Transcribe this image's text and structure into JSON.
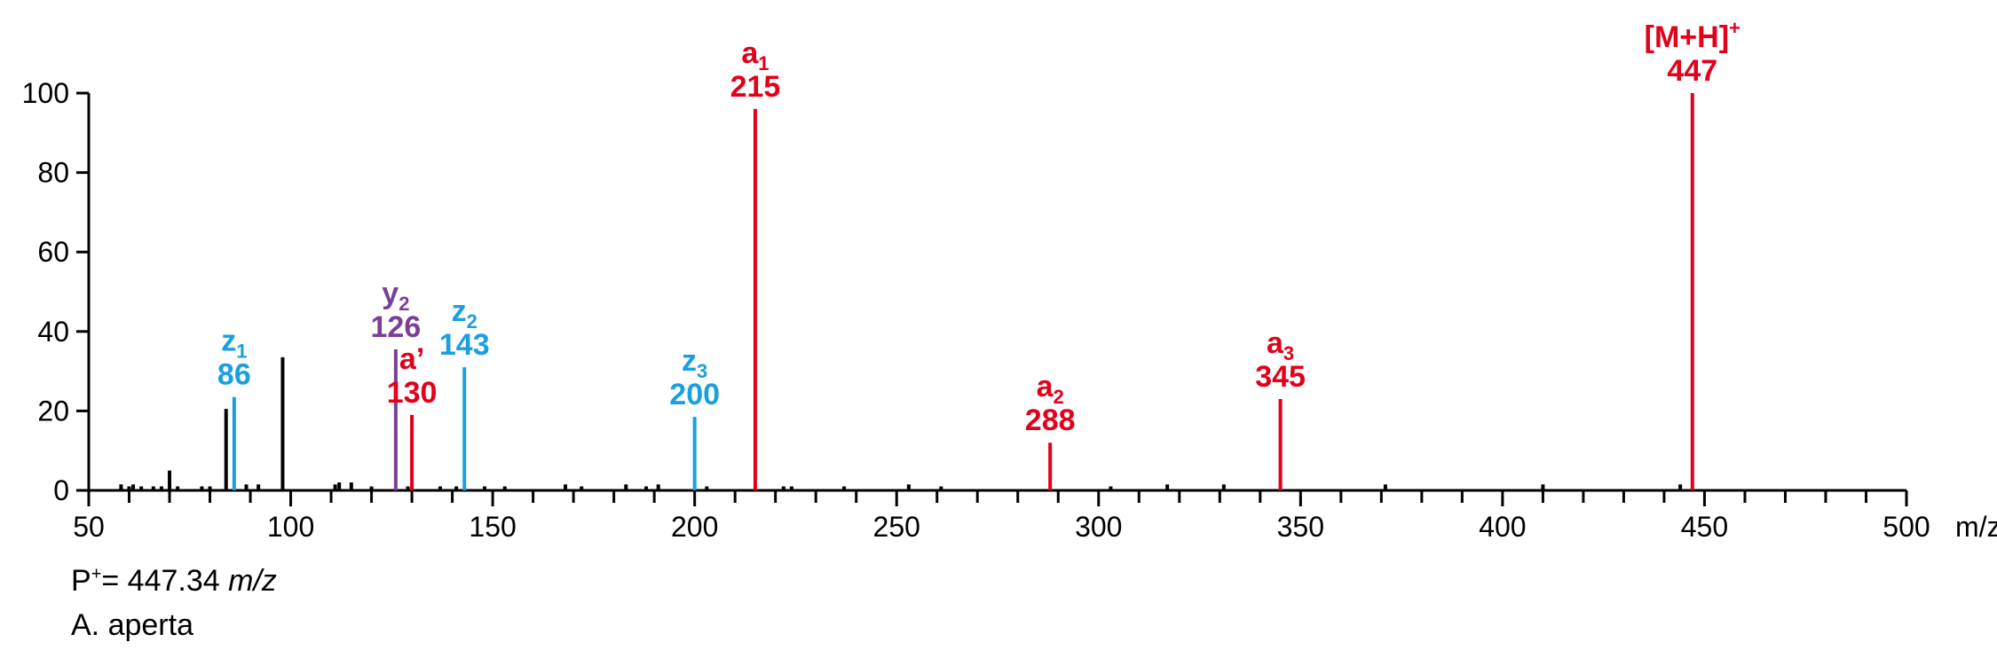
{
  "chart_data": {
    "type": "bar",
    "xlabel": "m/z",
    "ylabel": "",
    "xlim": [
      50,
      500
    ],
    "ylim": [
      0,
      100
    ],
    "x_ticks": [
      50,
      100,
      150,
      200,
      250,
      300,
      350,
      400,
      450,
      500
    ],
    "y_ticks": [
      0,
      20,
      40,
      60,
      80,
      100
    ],
    "grid": false,
    "colors": {
      "unassigned": "#000000",
      "a": "#e3001b",
      "z": "#1a9fe0",
      "y": "#7b3f98"
    },
    "unassigned_peaks": [
      {
        "x": 58,
        "y": 1.5
      },
      {
        "x": 60,
        "y": 1
      },
      {
        "x": 61,
        "y": 1.5
      },
      {
        "x": 63,
        "y": 1
      },
      {
        "x": 66,
        "y": 1
      },
      {
        "x": 68,
        "y": 1
      },
      {
        "x": 70,
        "y": 5
      },
      {
        "x": 72,
        "y": 1
      },
      {
        "x": 78,
        "y": 1
      },
      {
        "x": 80,
        "y": 1
      },
      {
        "x": 84,
        "y": 20.5
      },
      {
        "x": 89,
        "y": 1.5
      },
      {
        "x": 92,
        "y": 1.5
      },
      {
        "x": 98,
        "y": 33.5
      },
      {
        "x": 111,
        "y": 1.5
      },
      {
        "x": 112,
        "y": 2
      },
      {
        "x": 115,
        "y": 2
      },
      {
        "x": 120,
        "y": 1
      },
      {
        "x": 129,
        "y": 1
      },
      {
        "x": 137,
        "y": 1
      },
      {
        "x": 141,
        "y": 1
      },
      {
        "x": 148,
        "y": 1
      },
      {
        "x": 153,
        "y": 1
      },
      {
        "x": 168,
        "y": 1.5
      },
      {
        "x": 172,
        "y": 1
      },
      {
        "x": 183,
        "y": 1.5
      },
      {
        "x": 188,
        "y": 1
      },
      {
        "x": 191,
        "y": 1.5
      },
      {
        "x": 203,
        "y": 1
      },
      {
        "x": 222,
        "y": 1
      },
      {
        "x": 224,
        "y": 1
      },
      {
        "x": 237,
        "y": 1
      },
      {
        "x": 253,
        "y": 1.5
      },
      {
        "x": 261,
        "y": 1
      },
      {
        "x": 303,
        "y": 1
      },
      {
        "x": 317,
        "y": 1.5
      },
      {
        "x": 331,
        "y": 1.5
      },
      {
        "x": 371,
        "y": 1.5
      },
      {
        "x": 410,
        "y": 1.5
      },
      {
        "x": 444,
        "y": 1.5
      }
    ],
    "labeled_peaks": [
      {
        "ion": "z",
        "sub": "1",
        "prime": "",
        "mz": "86",
        "x": 86,
        "y": 23.5,
        "color": "#1a9fe0"
      },
      {
        "ion": "y",
        "sub": "2",
        "prime": "",
        "mz": "126",
        "x": 126,
        "y": 35.5,
        "color": "#7b3f98"
      },
      {
        "ion": "a",
        "sub": "",
        "prime": "’",
        "mz": "130",
        "x": 130,
        "y": 19,
        "color": "#e3001b"
      },
      {
        "ion": "z",
        "sub": "2",
        "prime": "",
        "mz": "143",
        "x": 143,
        "y": 31,
        "color": "#1a9fe0"
      },
      {
        "ion": "z",
        "sub": "3",
        "prime": "",
        "mz": "200",
        "x": 200,
        "y": 18.5,
        "color": "#1a9fe0"
      },
      {
        "ion": "a",
        "sub": "1",
        "prime": "",
        "mz": "215",
        "x": 215,
        "y": 96,
        "color": "#e3001b"
      },
      {
        "ion": "a",
        "sub": "2",
        "prime": "",
        "mz": "288",
        "x": 288,
        "y": 12,
        "color": "#e3001b"
      },
      {
        "ion": "a",
        "sub": "3",
        "prime": "",
        "mz": "345",
        "x": 345,
        "y": 23,
        "color": "#e3001b"
      },
      {
        "ion": "[M+H]",
        "sub": "",
        "prime": "",
        "sup": "+",
        "mz": "447",
        "x": 447,
        "y": 100,
        "color": "#e3001b"
      }
    ]
  },
  "footer": {
    "precursor_prefix": "P",
    "precursor_sup": "+",
    "precursor_value": "= 447.34 ",
    "precursor_unit": "m/z",
    "species": "A. aperta"
  }
}
